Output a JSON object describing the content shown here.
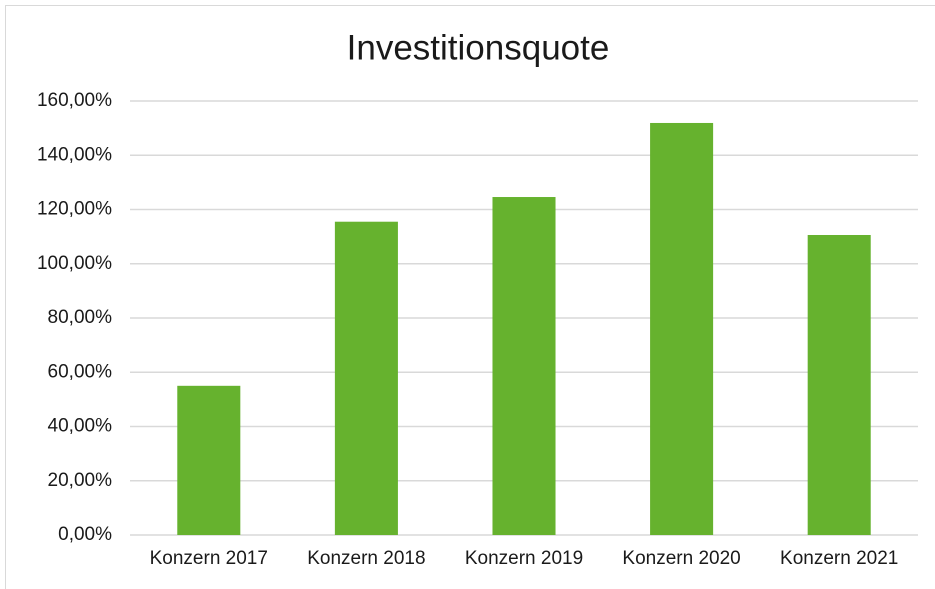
{
  "chart_data": {
    "type": "bar",
    "title": "Investitionsquote",
    "categories": [
      "Konzern 2017",
      "Konzern 2018",
      "Konzern 2019",
      "Konzern 2020",
      "Konzern 2021"
    ],
    "values": [
      55,
      115.5,
      124.6,
      151.9,
      110.6
    ],
    "color": "#66b22e",
    "ylim": [
      0,
      160
    ],
    "yticks": [
      {
        "value": 0,
        "label": "0,00%"
      },
      {
        "value": 20,
        "label": "20,00%"
      },
      {
        "value": 40,
        "label": "40,00%"
      },
      {
        "value": 60,
        "label": "60,00%"
      },
      {
        "value": 80,
        "label": "80,00%"
      },
      {
        "value": 100,
        "label": "100,00%"
      },
      {
        "value": 120,
        "label": "120,00%"
      },
      {
        "value": 140,
        "label": "140,00%"
      },
      {
        "value": 160,
        "label": "160,00%"
      }
    ],
    "grid": true
  }
}
